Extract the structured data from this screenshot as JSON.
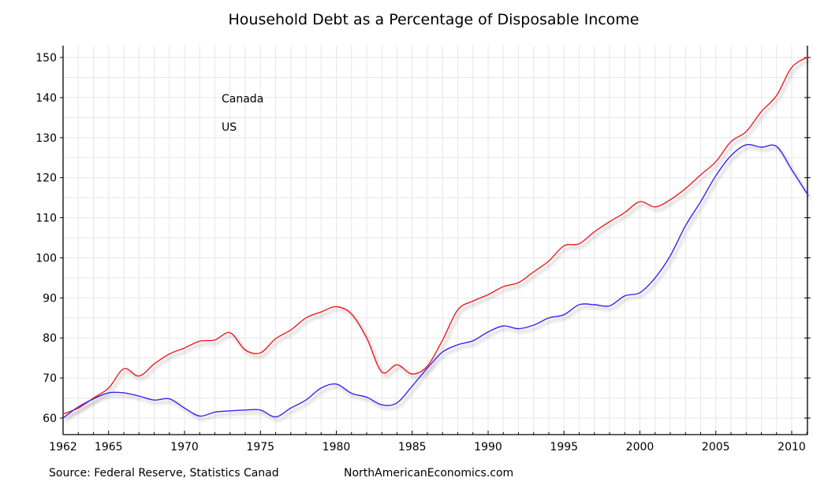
{
  "chart_data": {
    "type": "line",
    "title": "Household Debt as a Percentage of Disposable Income",
    "xlabel": "",
    "ylabel": "",
    "xlim": [
      1962,
      2011.1
    ],
    "ylim": [
      55.9,
      152
    ],
    "grid": true,
    "legend_position": "top-left",
    "x_ticks": [
      1962,
      1965,
      1970,
      1975,
      1980,
      1985,
      1990,
      1995,
      2000,
      2005,
      2010
    ],
    "x_tick_labels": [
      "1962",
      "1965",
      "1970",
      "1975",
      "1980",
      "1985",
      "1990",
      "1995",
      "2000",
      "2005",
      "2010"
    ],
    "y_ticks": [
      60,
      70,
      80,
      90,
      100,
      110,
      120,
      130,
      140,
      150
    ],
    "y_tick_labels": [
      "60",
      "70",
      "80",
      "90",
      "100",
      "110",
      "120",
      "130",
      "140",
      "150"
    ],
    "x": [
      1962,
      1963,
      1964,
      1965,
      1966,
      1967,
      1968,
      1969,
      1970,
      1971,
      1972,
      1973,
      1974,
      1975,
      1976,
      1977,
      1978,
      1979,
      1980,
      1981,
      1982,
      1983,
      1984,
      1985,
      1986,
      1987,
      1988,
      1989,
      1990,
      1991,
      1992,
      1993,
      1994,
      1995,
      1996,
      1997,
      1998,
      1999,
      2000,
      2001,
      2002,
      2003,
      2004,
      2005,
      2006,
      2007,
      2008,
      2009,
      2010,
      2011.1
    ],
    "series": [
      {
        "name": "Canada",
        "color": "#ee1c24",
        "values": [
          61,
          62.5,
          65,
          67.5,
          72.3,
          70.5,
          73.5,
          76,
          77.5,
          79.2,
          79.5,
          81.3,
          77,
          76.3,
          79.8,
          82,
          85,
          86.5,
          87.8,
          86,
          80,
          71.5,
          73.3,
          71,
          73,
          79.5,
          87,
          89.2,
          90.8,
          92.8,
          93.8,
          96.5,
          99.2,
          103,
          103.5,
          106.5,
          109,
          111.3,
          114,
          112.7,
          114.5,
          117.3,
          120.7,
          124,
          129,
          131.5,
          136.5,
          140.5,
          147.5,
          150.2
        ]
      },
      {
        "name": "US",
        "color": "#3a22f0",
        "values": [
          60,
          62.8,
          64.8,
          66.3,
          66.3,
          65.5,
          64.5,
          64.8,
          62.5,
          60.5,
          61.5,
          61.8,
          62,
          62,
          60.3,
          62.5,
          64.5,
          67.5,
          68.5,
          66.2,
          65.2,
          63.3,
          63.8,
          68,
          72.5,
          76.5,
          78.3,
          79.3,
          81.5,
          83,
          82.3,
          83.2,
          85,
          85.8,
          88.3,
          88.3,
          88,
          90.5,
          91.3,
          95,
          100.5,
          108,
          114,
          120.5,
          125.5,
          128.2,
          127.6,
          127.8,
          122,
          115.5
        ]
      }
    ]
  },
  "footer": {
    "source": "Source: Federal Reserve, Statistics Canad",
    "site": "NorthAmericanEconomics.com"
  },
  "colors": {
    "grid": "#e6e6e6",
    "axis": "#000000",
    "shadow": "#9a9a9a"
  }
}
